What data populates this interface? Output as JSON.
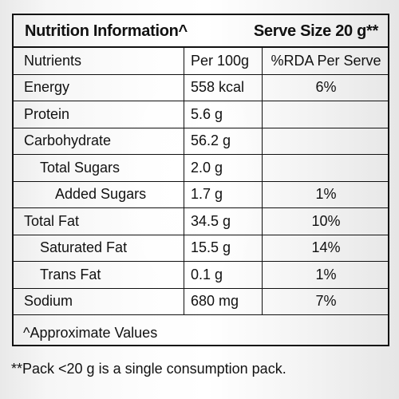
{
  "header": {
    "title": "Nutrition Information^",
    "serve_size": "Serve Size 20 g**"
  },
  "table": {
    "columns": [
      "Nutrients",
      "Per 100g",
      "%RDA Per Serve"
    ],
    "rows": [
      {
        "nutrient": "Energy",
        "per100g": "558 kcal",
        "rda": "6%",
        "indent": 0
      },
      {
        "nutrient": "Protein",
        "per100g": "5.6 g",
        "rda": "",
        "indent": 0
      },
      {
        "nutrient": "Carbohydrate",
        "per100g": "56.2 g",
        "rda": "",
        "indent": 0
      },
      {
        "nutrient": "Total Sugars",
        "per100g": "2.0 g",
        "rda": "",
        "indent": 1
      },
      {
        "nutrient": "Added Sugars",
        "per100g": "1.7 g",
        "rda": "1%",
        "indent": 2
      },
      {
        "nutrient": "Total Fat",
        "per100g": "34.5 g",
        "rda": "10%",
        "indent": 0
      },
      {
        "nutrient": "Saturated Fat",
        "per100g": "15.5 g",
        "rda": "14%",
        "indent": 1
      },
      {
        "nutrient": "Trans Fat",
        "per100g": "0.1 g",
        "rda": "1%",
        "indent": 1
      },
      {
        "nutrient": "Sodium",
        "per100g": "680 mg",
        "rda": "7%",
        "indent": 0
      }
    ]
  },
  "footer": {
    "approx": "^Approximate Values",
    "pack_note": "**Pack <20 g is a single consumption pack."
  }
}
